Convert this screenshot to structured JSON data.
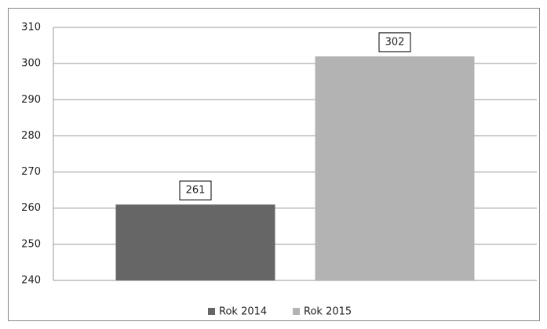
{
  "chart_data": {
    "type": "bar",
    "categories": [
      null
    ],
    "series": [
      {
        "name": "Rok 2014",
        "color": "#666666",
        "values": [
          261
        ]
      },
      {
        "name": "Rok 2015",
        "color": "#b3b3b3",
        "values": [
          302
        ]
      }
    ],
    "ylim": [
      240,
      310
    ],
    "yticks": [
      240,
      250,
      260,
      270,
      280,
      290,
      300,
      310
    ],
    "grid": true,
    "legend": "bottom"
  }
}
